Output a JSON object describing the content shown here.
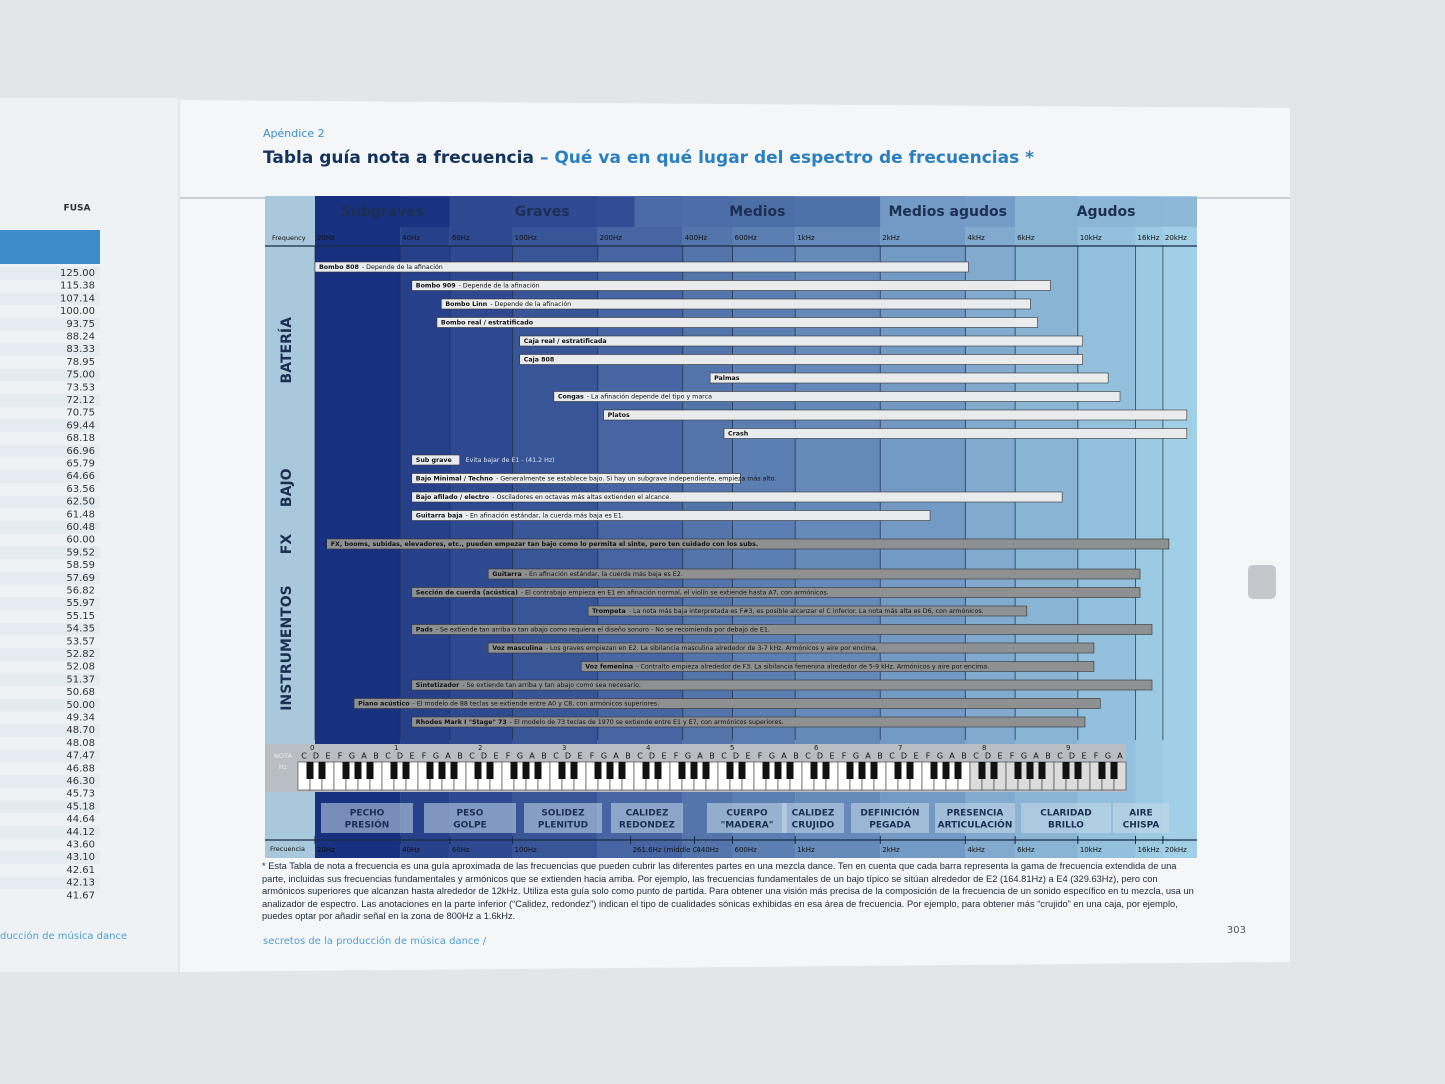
{
  "left_page": {
    "header": "FUSA",
    "values": [
      "125.00",
      "115.38",
      "107.14",
      "100.00",
      "93.75",
      "88.24",
      "83.33",
      "78.95",
      "75.00",
      "73.53",
      "72.12",
      "70.75",
      "69.44",
      "68.18",
      "66.96",
      "65.79",
      "64.66",
      "63.56",
      "62.50",
      "61.48",
      "60.48",
      "60.00",
      "59.52",
      "58.59",
      "57.69",
      "56.82",
      "55.97",
      "55.15",
      "54.35",
      "53.57",
      "52.82",
      "52.08",
      "51.37",
      "50.68",
      "50.00",
      "49.34",
      "48.70",
      "48.08",
      "47.47",
      "46.88",
      "46.30",
      "45.73",
      "45.18",
      "44.64",
      "44.12",
      "43.60",
      "43.10",
      "42.61",
      "42.13",
      "41.67"
    ],
    "footer": "ducción de música dance"
  },
  "header": {
    "kicker": "Apéndice 2",
    "title": "Tabla guía nota a frecuencia",
    "title_highlight": "– Qué va en qué lugar del espectro de frecuencias *"
  },
  "chart": {
    "frequency_label_top": "Frequency",
    "frequency_label_bottom": "Frecuencia",
    "log_scale": true,
    "xlim": [
      20,
      26400
    ],
    "top_ticks": [
      {
        "value": 20,
        "label": "20Hz"
      },
      {
        "value": 40,
        "label": "40Hz"
      },
      {
        "value": 60,
        "label": "60Hz"
      },
      {
        "value": 100,
        "label": "100Hz"
      },
      {
        "value": 200,
        "label": "200Hz"
      },
      {
        "value": 400,
        "label": "400Hz"
      },
      {
        "value": 600,
        "label": "600Hz"
      },
      {
        "value": 1000,
        "label": "1kHz"
      },
      {
        "value": 2000,
        "label": "2kHz"
      },
      {
        "value": 4000,
        "label": "4kHz"
      },
      {
        "value": 6000,
        "label": "6kHz"
      },
      {
        "value": 10000,
        "label": "10kHz"
      },
      {
        "value": 16000,
        "label": "16kHz"
      },
      {
        "value": 20000,
        "label": "20kHz"
      }
    ],
    "bottom_ticks": [
      {
        "value": 20,
        "label": "20Hz"
      },
      {
        "value": 40,
        "label": "40Hz"
      },
      {
        "value": 60,
        "label": "60Hz"
      },
      {
        "value": 100,
        "label": "100Hz"
      },
      {
        "value": 261.6,
        "label": "261.6Hz (middle C)"
      },
      {
        "value": 440,
        "label": "440Hz"
      },
      {
        "value": 600,
        "label": "600Hz"
      },
      {
        "value": 1000,
        "label": "1kHz"
      },
      {
        "value": 2000,
        "label": "2kHz"
      },
      {
        "value": 4000,
        "label": "4kHz"
      },
      {
        "value": 6000,
        "label": "6kHz"
      },
      {
        "value": 10000,
        "label": "10kHz"
      },
      {
        "value": 16000,
        "label": "16kHz"
      },
      {
        "value": 20000,
        "label": "20kHz"
      }
    ],
    "bands": [
      {
        "name": "Subgraves",
        "range": [
          20,
          60
        ]
      },
      {
        "name": "Graves",
        "range": [
          60,
          270
        ]
      },
      {
        "name": "Medios",
        "range": [
          270,
          2000
        ]
      },
      {
        "name": "Medios agudos",
        "range": [
          2000,
          6000
        ]
      },
      {
        "name": "Agudos",
        "range": [
          6000,
          26400
        ]
      }
    ],
    "groups": [
      {
        "name": "BATERÍA",
        "color": "#e9ebed",
        "bars": [
          {
            "name": "Bombo 808",
            "note": "- Depende de la afinación",
            "range": [
              20,
              4100
            ]
          },
          {
            "name": "Bombo 909",
            "note": "- Depende de la afinación",
            "range": [
              44,
              8000
            ]
          },
          {
            "name": "Bombo Linn",
            "note": "- Depende de la afinación",
            "range": [
              56,
              6800
            ]
          },
          {
            "name": "Bombo real / estratificado",
            "range": [
              54,
              7200
            ]
          },
          {
            "name": "Caja real / estratificada",
            "range": [
              106,
              10400
            ]
          },
          {
            "name": "Caja 808",
            "range": [
              106,
              10400
            ]
          },
          {
            "name": "Palmas",
            "range": [
              500,
              12800
            ]
          },
          {
            "name": "Congas",
            "note": "- La afinación depende del tipo y marca",
            "range": [
              140,
              14100
            ]
          },
          {
            "name": "Platos",
            "range": [
              210,
              24300
            ]
          },
          {
            "name": "Crash",
            "range": [
              560,
              24300
            ]
          }
        ]
      },
      {
        "name": "BAJO",
        "color": "#e9ebed",
        "bars": [
          {
            "name": "Sub grave",
            "side_note": "Evita bajar de E1 - (41.2 Hz)",
            "range": [
              44,
              65
            ]
          },
          {
            "name": "Bajo Minimal / Techno",
            "note": "- Generalmente se establece bajo. Si hay un subgrave independiente, empieza más alto.",
            "range": [
              44,
              640
            ]
          },
          {
            "name": "Bajo afilado / electro",
            "note": "- Osciladores en octavas más altas extienden el alcance.",
            "range": [
              44,
              8800
            ]
          },
          {
            "name": "Guitarra baja",
            "note": "- En afinación estándar, la cuerda más baja es E1.",
            "range": [
              44,
              3000
            ]
          }
        ]
      },
      {
        "name": "FX",
        "color": "#8e9092",
        "bars": [
          {
            "name": "FX, booms, subidas, elevadores, etc., pueden empezar tan bajo como lo permita el sinte, pero ten cuidado con los subs.",
            "range": [
              22,
              21000
            ]
          }
        ]
      },
      {
        "name": "INSTRUMENTOS",
        "color": "#8e9092",
        "bars": [
          {
            "name": "Guitarra",
            "note": "- En afinación estándar, la cuerda más baja es E2.",
            "range": [
              82,
              16600
            ]
          },
          {
            "name": "Sección de cuerda (acústica)",
            "note": "- El contrabajo empieza en E1 en afinación normal, el violín se extiende hasta A7, con armónicos.",
            "range": [
              44,
              16600
            ]
          },
          {
            "name": "Trompeta",
            "note": "- La nota más baja interpretada es F#3, es posible alcanzar el C inferior. La nota más alta es D6, con armónicos.",
            "range": [
              185,
              6600
            ]
          },
          {
            "name": "Pads",
            "note": "- Se extiende tan arriba o tan abajo como requiera el diseño sonoro - No se recomienda por debajo de E1.",
            "range": [
              44,
              18300
            ]
          },
          {
            "name": "Voz masculina",
            "note": "- Los graves empiezan en E2. La sibilancia masculina alrededor de 3-7 kHz. Armónicos y aire por encima.",
            "range": [
              82,
              11400
            ]
          },
          {
            "name": "Voz femenina",
            "note": "- Contralto empieza alrededor de F3. La sibilancia femenina alrededor de 5-9 kHz. Armónicos y aire por encima.",
            "range": [
              175,
              11400
            ]
          },
          {
            "name": "Sintetizador",
            "note": "- Se extiende tan arriba y tan abajo como sea necesario.",
            "range": [
              44,
              18300
            ]
          },
          {
            "name": "Piano acústico",
            "note": "- El modelo de 88 teclas se extiende entre A0 y C8, con armónicos superiores.",
            "range": [
              27.5,
              12000
            ]
          },
          {
            "name": "Rhodes Mark I \"Stage\" 73",
            "note": "- El modelo de 73 teclas de 1970 se extiende entre E1 y E7, con armónicos superiores.",
            "range": [
              44,
              10600
            ]
          }
        ]
      }
    ],
    "keyboard": {
      "row_label_note": "NOTA",
      "row_label_hz": "Hz",
      "octaves": [
        0,
        1,
        2,
        3,
        4,
        5,
        6,
        7,
        8,
        9
      ],
      "notes": [
        "C",
        "D",
        "E",
        "F",
        "G",
        "A",
        "B"
      ]
    },
    "qualities": [
      [
        "PECHO",
        "PRESIÓN"
      ],
      [
        "PESO",
        "GOLPE"
      ],
      [
        "SOLIDEZ",
        "PLENITUD"
      ],
      [
        "CALIDEZ",
        "REDONDEZ"
      ],
      [
        "CUERPO",
        "\"MADERA\""
      ],
      [
        "CALIDEZ",
        "CRUJIDO"
      ],
      [
        "DEFINICIÓN",
        "PEGADA"
      ],
      [
        "PRESENCIA",
        "ARTICULACIÓN"
      ],
      [
        "CLARIDAD",
        "BRILLO"
      ],
      [
        "AIRE",
        "CHISPA"
      ]
    ]
  },
  "footnote": "* Esta Tabla de nota a frecuencia es una guía aproximada de las frecuencias que pueden cubrir las diferentes partes en una mezcla dance. Ten en cuenta que cada barra representa la gama de frecuencia extendida de una parte, incluidas sus frecuencias fundamentales y armónicos que se extienden hacia arriba. Por ejemplo, las frecuencias fundamentales de un bajo típico se sitúan alrededor de E2 (164.81Hz) a E4 (329.63Hz), pero con armónicos superiores que alcanzan hasta alrededor de 12kHz. Utiliza esta guía solo como punto de partida. Para obtener una visión más precisa de la composición de la frecuencia de un sonido específico en tu mezcla, usa un analizador de espectro. Las anotaciones en la parte inferior (“Calidez, redondez”) indican el tipo de cualidades sónicas exhibidas en esa área de frecuencia. Por ejemplo, para obtener más “crujido” en una caja, por ejemplo, puedes optar por añadir señal en la zona de 800Hz a 1.6kHz.",
  "footer": "secretos de la producción de música dance /",
  "page_number": "303"
}
